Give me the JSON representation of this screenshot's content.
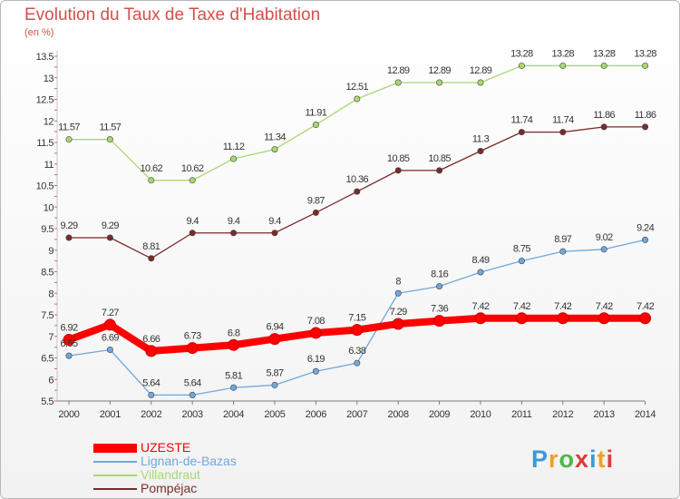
{
  "chart_data": {
    "type": "line",
    "title": "Evolution du Taux de Taxe d'Habitation",
    "subtitle": "(en %)",
    "x": [
      "2000",
      "2001",
      "2002",
      "2003",
      "2004",
      "2005",
      "2006",
      "2007",
      "2008",
      "2009",
      "2010",
      "2011",
      "2012",
      "2013",
      "2014"
    ],
    "ylim": [
      5.5,
      13.5
    ],
    "yticks": [
      "5.5",
      "6",
      "6.5",
      "7",
      "7.5",
      "8",
      "8.5",
      "9",
      "9.5",
      "10",
      "10.5",
      "11",
      "11.5",
      "12",
      "12.5",
      "13",
      "13.5"
    ],
    "grid": false,
    "legend_position": "bottom-left",
    "series": [
      {
        "name": "UZESTE",
        "color": "#ff0000",
        "values": [
          6.92,
          7.27,
          6.66,
          6.73,
          6.8,
          6.94,
          7.08,
          7.15,
          7.29,
          7.36,
          7.42,
          7.42,
          7.42,
          7.42,
          7.42
        ],
        "labels": [
          "6.92",
          "7.27",
          "6.66",
          "6.73",
          "6.8",
          "6.94",
          "7.08",
          "7.15",
          "7.29",
          "7.36",
          "7.42",
          "7.42",
          "7.42",
          "7.42",
          "7.42"
        ]
      },
      {
        "name": "Lignan-de-Bazas",
        "color": "#6fa8dc",
        "values": [
          6.55,
          6.69,
          5.64,
          5.64,
          5.81,
          5.87,
          6.19,
          6.38,
          8,
          8.16,
          8.49,
          8.75,
          8.97,
          9.02,
          9.24
        ],
        "labels": [
          "6.55",
          "6.69",
          "5.64",
          "5.64",
          "5.81",
          "5.87",
          "6.19",
          "6.38",
          "8",
          "8.16",
          "8.49",
          "8.75",
          "8.97",
          "9.02",
          "9.24"
        ]
      },
      {
        "name": "Villandraut",
        "color": "#a8d870",
        "values": [
          11.57,
          11.57,
          10.62,
          10.62,
          11.12,
          11.34,
          11.91,
          12.51,
          12.89,
          12.89,
          12.89,
          13.28,
          13.28,
          13.28,
          13.28
        ],
        "labels": [
          "11.57",
          "11.57",
          "10.62",
          "10.62",
          "11.12",
          "11.34",
          "11.91",
          "12.51",
          "12.89",
          "12.89",
          "12.89",
          "13.28",
          "13.28",
          "13.28",
          "13.28"
        ]
      },
      {
        "name": "Pompéjac",
        "color": "#7a2a2a",
        "values": [
          9.29,
          9.29,
          8.81,
          9.4,
          9.4,
          9.4,
          9.87,
          10.36,
          10.85,
          10.85,
          11.3,
          11.74,
          11.74,
          11.86,
          11.86
        ],
        "labels": [
          "9.29",
          "9.29",
          "8.81",
          "9.4",
          "9.4",
          "9.4",
          "9.87",
          "10.36",
          "10.85",
          "10.85",
          "11.3",
          "11.74",
          "11.74",
          "11.86",
          "11.86"
        ]
      }
    ]
  },
  "branding": {
    "letters": [
      "P",
      "r",
      "o",
      "x",
      "i",
      "t",
      "i"
    ],
    "colors": [
      "#3a9ad9",
      "#f0a020",
      "#4cb848",
      "#e23a3a",
      "#3a9ad9",
      "#f0a020",
      "#e23a3a"
    ]
  }
}
